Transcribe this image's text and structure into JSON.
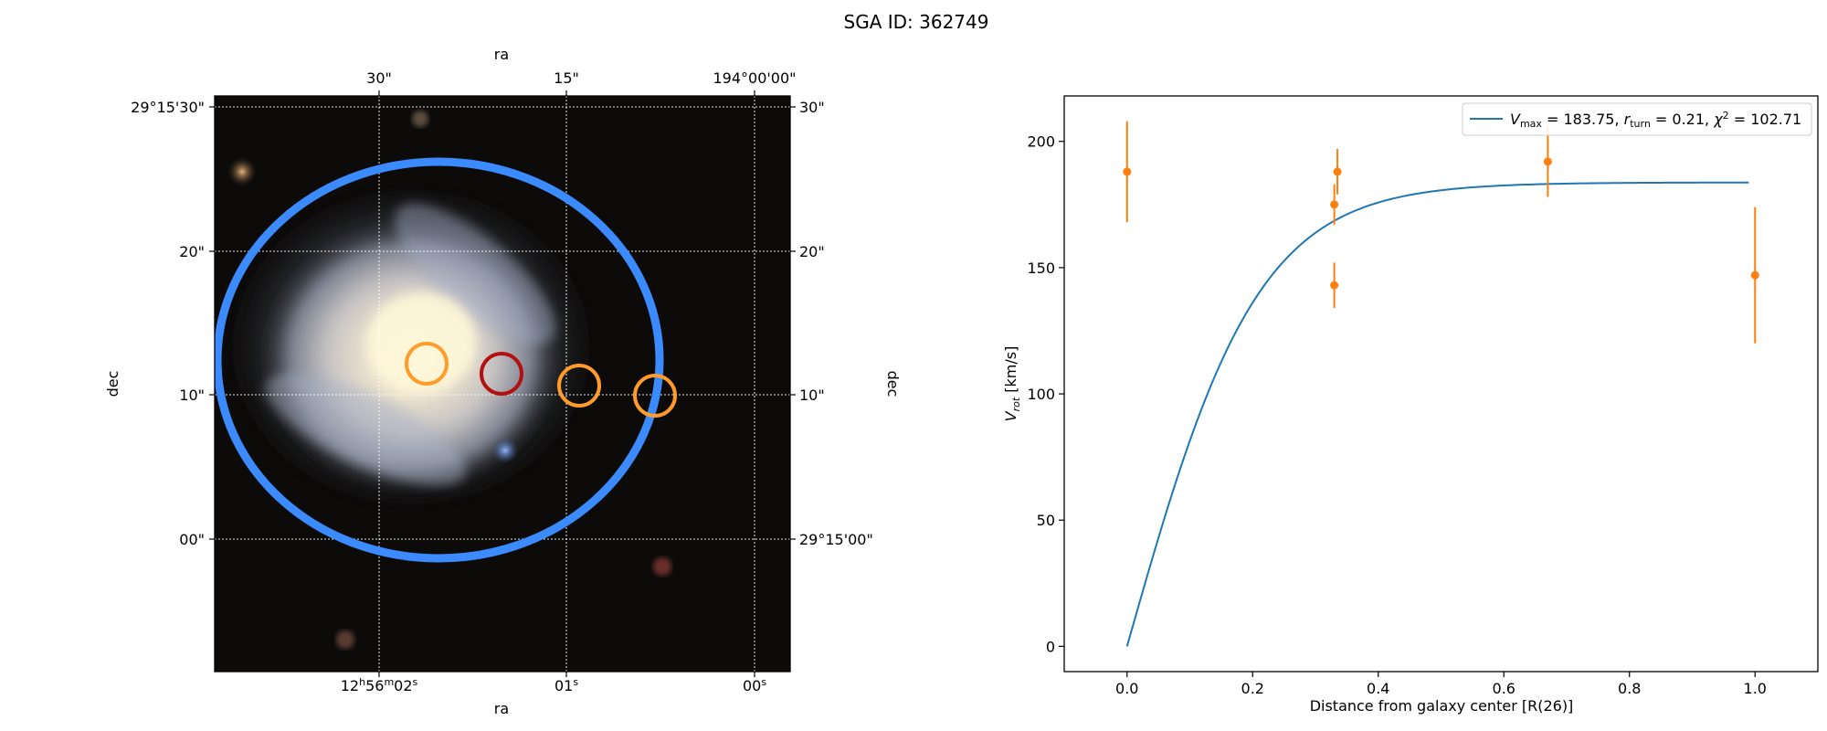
{
  "title": "SGA ID: 362749",
  "colors": {
    "model_line": "#1f77b4",
    "data_points": "#ff7f0e",
    "ellipse": "#3b8bff",
    "aperture_center": "#ff9c2a",
    "aperture_highlight": "#b31010",
    "aperture_offset": "#ff9c2a",
    "sky_background": "#0c0b0a"
  },
  "image_panel": {
    "xlabel_top": "ra",
    "xlabel_bottom": "ra",
    "ylabel_left": "dec",
    "ylabel_right": "dec",
    "top_ticks": [
      "30\"",
      "15\"",
      "194°00'00\""
    ],
    "bottom_ticks": [
      "12h56m02s",
      "01s",
      "00s"
    ],
    "bottom_tick_parts": [
      {
        "h": "12",
        "hs": "h",
        "m": "56",
        "ms": "m",
        "s": "02",
        "ss": "s"
      },
      {
        "s": "01",
        "ss": "s"
      },
      {
        "s": "00",
        "ss": "s"
      }
    ],
    "left_ticks": [
      "29°15'30\"",
      "20\"",
      "10\"",
      "00\""
    ],
    "right_ticks": [
      "30\"",
      "20\"",
      "10\"",
      "29°15'00\""
    ]
  },
  "chart_data": {
    "type": "scatter",
    "title": "",
    "xlabel": "Distance from galaxy center [R(26)]",
    "ylabel": "V_rot [km/s]",
    "xlim": [
      -0.1,
      1.1
    ],
    "ylim": [
      -10,
      218
    ],
    "xticks": [
      0.0,
      0.2,
      0.4,
      0.6,
      0.8,
      1.0
    ],
    "xtick_labels": [
      "0.0",
      "0.2",
      "0.4",
      "0.6",
      "0.8",
      "1.0"
    ],
    "yticks": [
      0,
      50,
      100,
      150,
      200
    ],
    "ytick_labels": [
      "0",
      "50",
      "100",
      "150",
      "200"
    ],
    "legend_position": "upper right",
    "series": [
      {
        "name": "V_max = 183.75, r_turn = 0.21, χ² = 102.71",
        "kind": "line",
        "model": "tanh",
        "params": {
          "vmax": 183.75,
          "rturn": 0.21,
          "chi2": 102.71
        },
        "x_range": [
          0.0,
          0.99
        ]
      },
      {
        "name": "",
        "kind": "errorbar",
        "points": [
          {
            "x": 0.0,
            "y": 188,
            "err": 20
          },
          {
            "x": 0.33,
            "y": 175,
            "err": 8
          },
          {
            "x": 0.335,
            "y": 188,
            "err": 9
          },
          {
            "x": 0.33,
            "y": 143,
            "err": 9
          },
          {
            "x": 0.67,
            "y": 192,
            "err": 14
          },
          {
            "x": 1.0,
            "y": 147,
            "err": 27
          }
        ]
      }
    ]
  }
}
